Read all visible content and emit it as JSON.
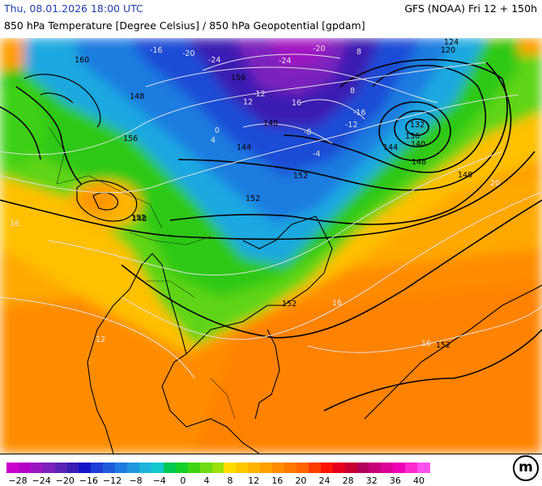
{
  "header": {
    "datetime": "Thu, 08.01.2026 18:00 UTC",
    "model_run": "GFS (NOAA) Fri 12 + 150h",
    "title": "850 hPa Temperature [Degree Celsius] / 850 hPa Geopotential [gpdam]"
  },
  "map": {
    "geopotential_labels": [
      "124",
      "120",
      "132",
      "136",
      "140",
      "144",
      "148",
      "148",
      "152",
      "152",
      "152",
      "152",
      "148",
      "152",
      "156",
      "156",
      "160",
      "140",
      "144",
      "148"
    ],
    "temperature_labels": [
      "-24",
      "-20",
      "-16",
      "-12",
      "-8",
      "-4",
      "0",
      "4",
      "8",
      "12",
      "16",
      "20",
      "-12",
      "-16",
      "16",
      "-20",
      "-24",
      "16",
      "16",
      "12",
      "8"
    ],
    "colors": {
      "coast": "#000000",
      "isohypse": "#000000",
      "isotherm": "#d0d0d0"
    }
  },
  "legend": {
    "ticks": [
      "-28",
      "-24",
      "-20",
      "-16",
      "-12",
      "-8",
      "-4",
      "0",
      "4",
      "8",
      "12",
      "16",
      "20",
      "24",
      "28",
      "32",
      "36",
      "40"
    ],
    "colors": [
      "#cc00cc",
      "#b400c8",
      "#9a18c2",
      "#7c22bc",
      "#5a22b6",
      "#3a1eb2",
      "#1414c8",
      "#1e3cd6",
      "#1e5cdc",
      "#1e7ce0",
      "#1e98e0",
      "#1eb4dc",
      "#14c8d0",
      "#00c850",
      "#14d028",
      "#40d414",
      "#6edc14",
      "#9ae00a",
      "#ffdc00",
      "#ffc800",
      "#ffb400",
      "#ffa000",
      "#ff8c00",
      "#ff7800",
      "#ff6400",
      "#ff3c00",
      "#ff1400",
      "#e6001e",
      "#c80032",
      "#b4005a",
      "#c80078",
      "#dc0096",
      "#f000b4",
      "#ff28d2",
      "#ff50f0"
    ]
  },
  "logo": {
    "text": "m"
  }
}
